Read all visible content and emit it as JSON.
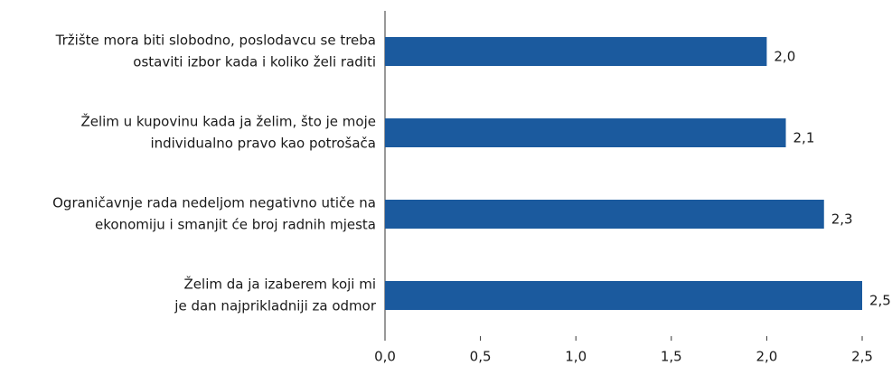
{
  "chart_data": {
    "type": "bar",
    "orientation": "horizontal",
    "categories": [
      [
        "Tržište mora biti slobodno, poslodavcu se treba",
        "ostaviti izbor kada i koliko želi raditi"
      ],
      [
        "Želim u kupovinu kada ja želim, što je moje",
        "individualno pravo kao potrošača"
      ],
      [
        "Ograničavnje rada nedeljom negativno utiče na",
        "ekonomiju i smanjit će broj radnih mjesta"
      ],
      [
        "Želim da ja izaberem koji mi",
        "je dan najprikladniji za odmor"
      ]
    ],
    "values": [
      2.0,
      2.1,
      2.3,
      2.5
    ],
    "value_labels": [
      "2,0",
      "2,1",
      "2,3",
      "2,5"
    ],
    "color": "#1b5a9e",
    "xlim": [
      0,
      2.5
    ],
    "xticks": [
      {
        "value": 0,
        "label": "0,0"
      },
      {
        "value": 0.5,
        "label": "0,5"
      },
      {
        "value": 1,
        "label": "1,0"
      },
      {
        "value": 1.5,
        "label": "1,5"
      },
      {
        "value": 2,
        "label": "2,0"
      },
      {
        "value": 2.5,
        "label": "2,5"
      }
    ],
    "grid": false
  }
}
